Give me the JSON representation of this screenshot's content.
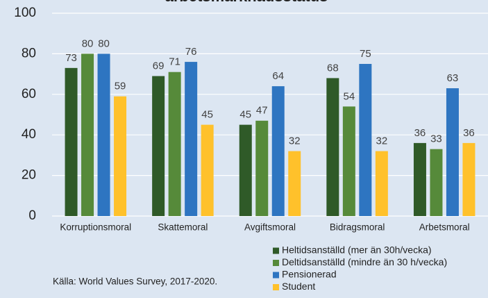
{
  "chart_data": {
    "type": "bar",
    "title": "arbetsmarknadsstatus",
    "categories": [
      "Korruptionsmoral",
      "Skattemoral",
      "Avgiftsmoral",
      "Bidragsmoral",
      "Arbetsmoral"
    ],
    "series": [
      {
        "name": "Heltidsanställd (mer än 30h/vecka)",
        "color": "#2f5a28",
        "values": [
          73,
          69,
          45,
          68,
          36
        ]
      },
      {
        "name": "Deltidsanställd (mindre än 30 h/vecka)",
        "color": "#568a3a",
        "values": [
          80,
          71,
          47,
          54,
          33
        ]
      },
      {
        "name": "Pensionerad",
        "color": "#2e75c1",
        "values": [
          80,
          76,
          64,
          75,
          63
        ]
      },
      {
        "name": "Student",
        "color": "#ffc12b",
        "values": [
          59,
          45,
          32,
          32,
          36
        ]
      }
    ],
    "ylim": [
      0,
      100
    ],
    "yticks": [
      0,
      20,
      40,
      60,
      80,
      100
    ],
    "grid": true,
    "source": "Källa: World Values Survey, 2017-2020."
  }
}
